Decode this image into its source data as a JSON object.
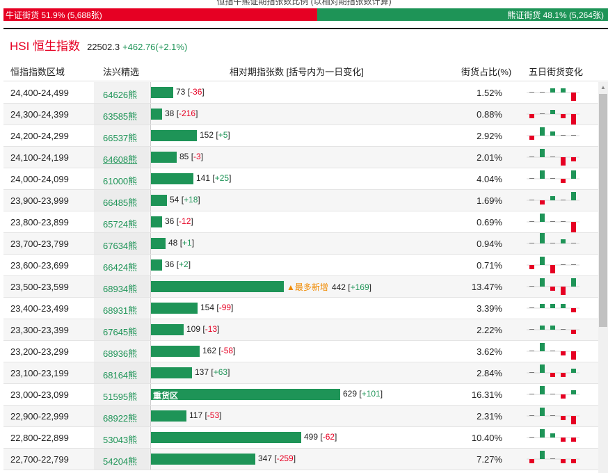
{
  "top_title": "恒指牛熊证期指张数比例 (以相对期指张数计算)",
  "ratio": {
    "bull_text": "牛证街货 51.9% (5,688张)",
    "bear_text": "熊证街货 48.1% (5,264张)",
    "bull_pct": 51.9
  },
  "index": {
    "name": "HSI 恒生指数",
    "value": "22502.3",
    "change": "+462.76(+2.1%)"
  },
  "headers": {
    "range": "恒指指数区域",
    "code": "法兴精选",
    "contracts": "相对期指张数 [括号内为一日变化]",
    "pct": "街货占比(%)",
    "five_day": "五日街货变化"
  },
  "colors": {
    "bear_green": "#1e9457",
    "bull_red": "#e60023",
    "tag_orange": "#f08a00"
  },
  "max_contracts": 629,
  "rows": [
    {
      "range": "24,400-24,499",
      "code": "64626熊",
      "count": "73",
      "change": "-36",
      "count_value": 73,
      "pct": "1.52%",
      "spark": [
        0,
        0,
        1,
        1,
        -2
      ]
    },
    {
      "range": "24,300-24,399",
      "code": "63585熊",
      "count": "38",
      "change": "-216",
      "count_value": 38,
      "pct": "0.88%",
      "spark": [
        -1,
        0,
        1,
        -1,
        -3
      ]
    },
    {
      "range": "24,200-24,299",
      "code": "66537熊",
      "count": "152",
      "change": "+5",
      "count_value": 152,
      "pct": "2.92%",
      "spark": [
        -1,
        2,
        1,
        0,
        0
      ]
    },
    {
      "range": "24,100-24,199",
      "code": "64608熊",
      "count": "85",
      "change": "-3",
      "count_value": 85,
      "pct": "2.01%",
      "underline": true,
      "spark": [
        0,
        2,
        0,
        -2,
        -1
      ]
    },
    {
      "range": "24,000-24,099",
      "code": "61000熊",
      "count": "141",
      "change": "+25",
      "count_value": 141,
      "pct": "4.04%",
      "spark": [
        0,
        2,
        0,
        -1,
        2
      ]
    },
    {
      "range": "23,900-23,999",
      "code": "66485熊",
      "count": "54",
      "change": "+18",
      "count_value": 54,
      "pct": "1.69%",
      "spark": [
        0,
        -1,
        1,
        0,
        2
      ]
    },
    {
      "range": "23,800-23,899",
      "code": "65724熊",
      "count": "36",
      "change": "-12",
      "count_value": 36,
      "pct": "0.69%",
      "spark": [
        0,
        2,
        0,
        0,
        -3
      ]
    },
    {
      "range": "23,700-23,799",
      "code": "67634熊",
      "count": "48",
      "change": "+1",
      "count_value": 48,
      "pct": "0.94%",
      "spark": [
        0,
        3,
        0,
        1,
        0
      ]
    },
    {
      "range": "23,600-23,699",
      "code": "66424熊",
      "count": "36",
      "change": "+2",
      "count_value": 36,
      "pct": "0.71%",
      "spark": [
        -1,
        2,
        -2,
        0,
        0
      ]
    },
    {
      "range": "23,500-23,599",
      "code": "68934熊",
      "count": "442",
      "change": "+169",
      "count_value": 442,
      "pct": "13.47%",
      "tag": "▲最多新增",
      "spark": [
        0,
        2,
        -1,
        -2,
        2
      ]
    },
    {
      "range": "23,400-23,499",
      "code": "68931熊",
      "count": "154",
      "change": "-99",
      "count_value": 154,
      "pct": "3.39%",
      "spark": [
        0,
        1,
        1,
        1,
        -1
      ]
    },
    {
      "range": "23,300-23,399",
      "code": "67645熊",
      "count": "109",
      "change": "-13",
      "count_value": 109,
      "pct": "2.22%",
      "spark": [
        0,
        1,
        1,
        0,
        -1
      ]
    },
    {
      "range": "23,200-23,299",
      "code": "68936熊",
      "count": "162",
      "change": "-58",
      "count_value": 162,
      "pct": "3.62%",
      "spark": [
        0,
        2,
        0,
        -1,
        -2
      ]
    },
    {
      "range": "23,100-23,199",
      "code": "68164熊",
      "count": "137",
      "change": "+63",
      "count_value": 137,
      "pct": "2.84%",
      "spark": [
        0,
        2,
        -1,
        -1,
        1
      ]
    },
    {
      "range": "23,000-23,099",
      "code": "51595熊",
      "count": "629",
      "change": "+101",
      "count_value": 629,
      "pct": "16.31%",
      "tag_inside": "重货区",
      "spark": [
        0,
        2,
        0,
        -1,
        1
      ]
    },
    {
      "range": "22,900-22,999",
      "code": "68922熊",
      "count": "117",
      "change": "-53",
      "count_value": 117,
      "pct": "2.31%",
      "spark": [
        0,
        2,
        0,
        -1,
        -2
      ]
    },
    {
      "range": "22,800-22,899",
      "code": "53043熊",
      "count": "499",
      "change": "-62",
      "count_value": 499,
      "pct": "10.40%",
      "spark": [
        0,
        2,
        1,
        -1,
        -1
      ]
    },
    {
      "range": "22,700-22,799",
      "code": "54204熊",
      "count": "347",
      "change": "-259",
      "count_value": 347,
      "pct": "7.27%",
      "spark": [
        -1,
        2,
        0,
        -1,
        -1
      ]
    }
  ]
}
